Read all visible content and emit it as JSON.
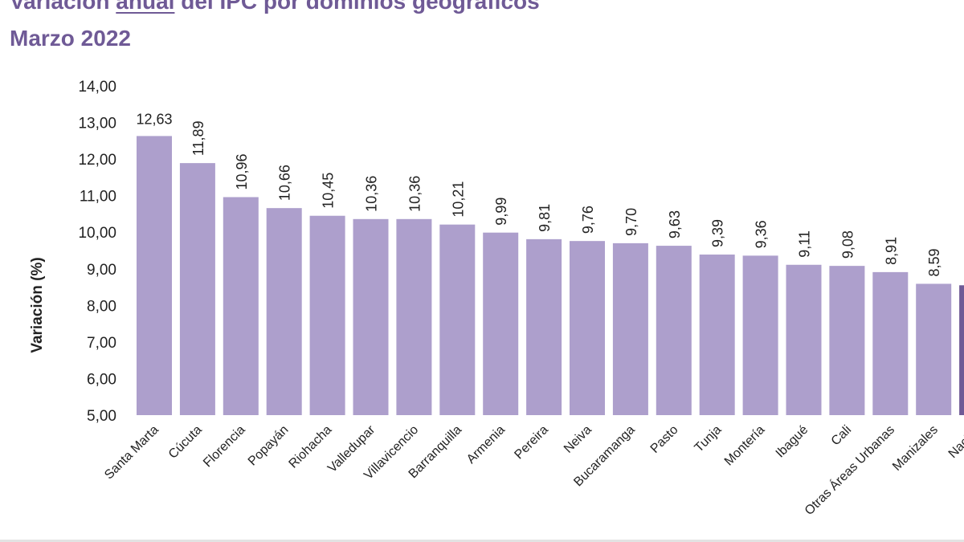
{
  "title_parts": [
    "Variación ",
    "anual",
    " del IPC por dominios geográficos"
  ],
  "subtitle": "Marzo 2022",
  "chart_data": {
    "type": "bar",
    "ylabel": "Variación (%)",
    "xlabel": "",
    "ylim": [
      5,
      14
    ],
    "yticks": [
      "5,00",
      "6,00",
      "7,00",
      "8,00",
      "9,00",
      "10,00",
      "11,00",
      "12,00",
      "13,00",
      "14,00"
    ],
    "grid": false,
    "categories": [
      "Santa Marta",
      "Cúcuta",
      "Florencia",
      "Popayán",
      "Riohacha",
      "Valledupar",
      "Villavicencio",
      "Barranquilla",
      "Armenia",
      "Pereira",
      "Neiva",
      "Bucaramanga",
      "Pasto",
      "Tunja",
      "Montería",
      "Ibagué",
      "Cali",
      "Otras Áreas Urbanas",
      "Manizales",
      "Nacion"
    ],
    "values": [
      12.63,
      11.89,
      10.96,
      10.66,
      10.45,
      10.36,
      10.36,
      10.21,
      9.99,
      9.81,
      9.76,
      9.7,
      9.63,
      9.39,
      9.36,
      9.11,
      9.08,
      8.91,
      8.59,
      8.55
    ],
    "value_labels": [
      "12,63",
      "11,89",
      "10,96",
      "10,66",
      "10,45",
      "10,36",
      "10,36",
      "10,21",
      "9,99",
      "9,81",
      "9,76",
      "9,70",
      "9,63",
      "9,39",
      "9,36",
      "9,11",
      "9,08",
      "8,91",
      "8,59",
      ""
    ],
    "highlight_label_index": 6,
    "highlight_bar_index": 19,
    "colors": {
      "bar": "#ad9fcc",
      "bar_highlight": "#6f5a96",
      "title": "#6f5a96",
      "label_highlight": "#7c62a6",
      "text": "#222222"
    }
  }
}
